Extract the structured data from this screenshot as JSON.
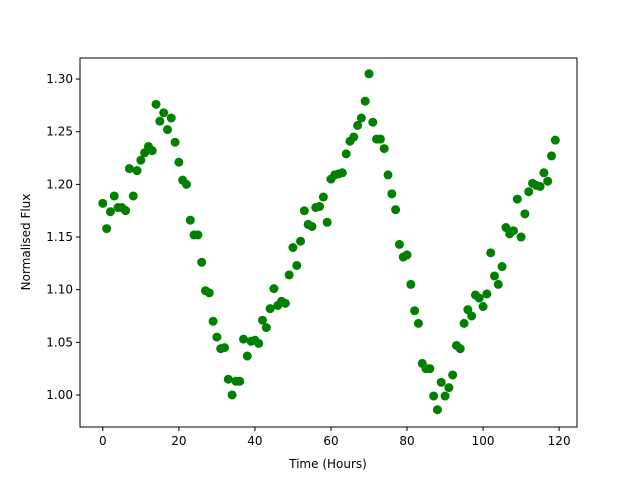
{
  "chart_data": {
    "type": "scatter",
    "xlabel": "Time (Hours)",
    "ylabel": "Normalised Flux",
    "color": "#008000",
    "x": [
      0,
      1,
      2,
      3,
      4,
      5,
      6,
      7,
      8,
      9,
      10,
      11,
      12,
      13,
      14,
      15,
      16,
      17,
      18,
      19,
      20,
      21,
      22,
      23,
      24,
      25,
      26,
      27,
      28,
      29,
      30,
      31,
      32,
      33,
      34,
      35,
      36,
      37,
      38,
      39,
      40,
      41,
      42,
      43,
      44,
      45,
      46,
      47,
      48,
      49,
      50,
      51,
      52,
      53,
      54,
      55,
      56,
      57,
      58,
      59,
      60,
      61,
      62,
      63,
      64,
      65,
      66,
      67,
      68,
      69,
      70,
      71,
      72,
      73,
      74,
      75,
      76,
      77,
      78,
      79,
      80,
      81,
      82,
      83,
      84,
      85,
      86,
      87,
      88,
      89,
      90,
      91,
      92,
      93,
      94,
      95,
      96,
      97,
      98,
      99,
      100,
      101,
      102,
      103,
      104,
      105,
      106,
      107,
      108,
      109,
      110,
      111,
      112,
      113,
      114,
      115,
      116,
      117,
      118,
      119
    ],
    "values": [
      1.182,
      1.158,
      1.174,
      1.189,
      1.178,
      1.178,
      1.175,
      1.215,
      1.189,
      1.213,
      1.223,
      1.23,
      1.236,
      1.232,
      1.276,
      1.26,
      1.268,
      1.252,
      1.263,
      1.24,
      1.221,
      1.204,
      1.2,
      1.166,
      1.152,
      1.152,
      1.126,
      1.099,
      1.097,
      1.07,
      1.055,
      1.044,
      1.045,
      1.015,
      1.0,
      1.013,
      1.013,
      1.053,
      1.037,
      1.051,
      1.052,
      1.049,
      1.071,
      1.064,
      1.082,
      1.101,
      1.085,
      1.089,
      1.087,
      1.114,
      1.14,
      1.123,
      1.146,
      1.175,
      1.162,
      1.16,
      1.178,
      1.179,
      1.188,
      1.164,
      1.205,
      1.209,
      1.21,
      1.211,
      1.229,
      1.241,
      1.245,
      1.256,
      1.263,
      1.279,
      1.305,
      1.259,
      1.243,
      1.243,
      1.234,
      1.209,
      1.191,
      1.176,
      1.143,
      1.131,
      1.133,
      1.105,
      1.08,
      1.068,
      1.03,
      1.025,
      1.025,
      0.999,
      0.986,
      1.012,
      0.999,
      1.007,
      1.019,
      1.047,
      1.044,
      1.068,
      1.081,
      1.075,
      1.095,
      1.092,
      1.084,
      1.096,
      1.135,
      1.113,
      1.105,
      1.122,
      1.159,
      1.153,
      1.156,
      1.186,
      1.15,
      1.172,
      1.193,
      1.201,
      1.199,
      1.198,
      1.211,
      1.203,
      1.227,
      1.242
    ],
    "xlim": [
      -6,
      124.7
    ],
    "ylim": [
      0.9696,
      1.32
    ],
    "xticks": [
      0,
      20,
      40,
      60,
      80,
      100,
      120
    ],
    "yticks": [
      {
        "value": 1.0,
        "label": "1.00"
      },
      {
        "value": 1.05,
        "label": "1.05"
      },
      {
        "value": 1.1,
        "label": "1.10"
      },
      {
        "value": 1.15,
        "label": "1.15"
      },
      {
        "value": 1.2,
        "label": "1.20"
      },
      {
        "value": 1.25,
        "label": "1.25"
      },
      {
        "value": 1.3,
        "label": "1.30"
      }
    ]
  }
}
